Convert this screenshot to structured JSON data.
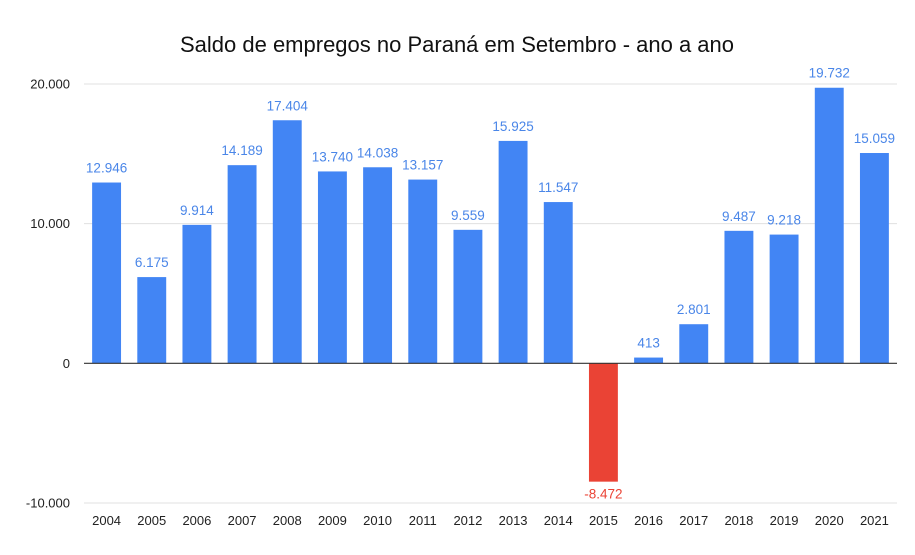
{
  "chart_data": {
    "type": "bar",
    "title": "Saldo de empregos no Paraná em Setembro - ano a ano",
    "xlabel": "",
    "ylabel": "",
    "ylim": [
      -10000,
      20000
    ],
    "yticks": [
      {
        "value": 20000,
        "label": "20.000"
      },
      {
        "value": 10000,
        "label": "10.000"
      },
      {
        "value": 0,
        "label": "0"
      },
      {
        "value": -10000,
        "label": "-10.000"
      }
    ],
    "grid": true,
    "legend": "none",
    "colors": {
      "positive": "#4285f4",
      "negative": "#ea4335",
      "label_positive": "#4a86e8",
      "label_negative": "#ea4335"
    },
    "categories": [
      "2004",
      "2005",
      "2006",
      "2007",
      "2008",
      "2009",
      "2010",
      "2011",
      "2012",
      "2013",
      "2014",
      "2015",
      "2016",
      "2017",
      "2018",
      "2019",
      "2020",
      "2021"
    ],
    "values": [
      12946,
      6175,
      9914,
      14189,
      17404,
      13740,
      14038,
      13157,
      9559,
      15925,
      11547,
      -8472,
      413,
      2801,
      9487,
      9218,
      19732,
      15059
    ],
    "data_labels": [
      "12.946",
      "6.175",
      "9.914",
      "14.189",
      "17.404",
      "13.740",
      "14.038",
      "13.157",
      "9.559",
      "15.925",
      "11.547",
      "-8.472",
      "413",
      "2.801",
      "9.487",
      "9.218",
      "19.732",
      "15.059"
    ]
  }
}
